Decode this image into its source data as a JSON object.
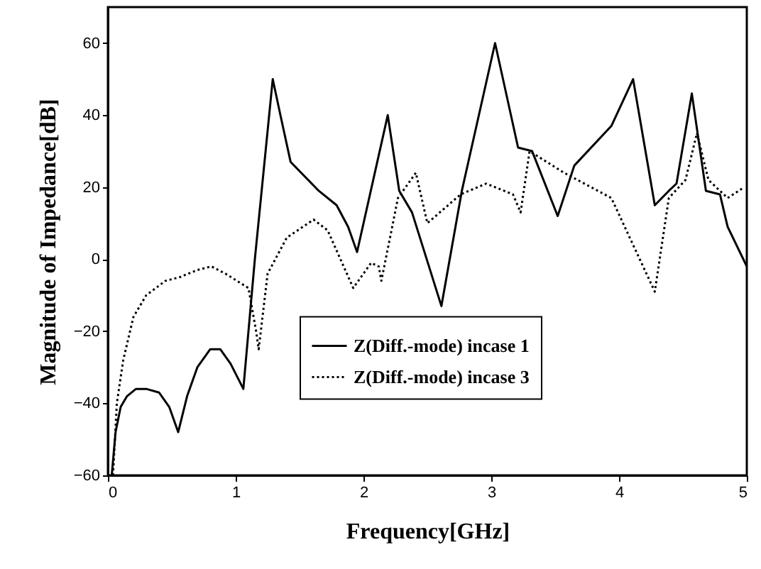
{
  "chart_data": {
    "type": "line",
    "xlabel": "Frequency[GHz]",
    "ylabel": "Magnitude of Impedance[dB]",
    "xlim": [
      0,
      5
    ],
    "xticks": [
      0,
      1,
      2,
      3,
      4,
      5
    ],
    "ylim": [
      -60,
      70
    ],
    "yticks": [
      -60,
      -40,
      -20,
      0,
      20,
      40,
      60
    ],
    "grid": false,
    "legend": "bottom",
    "marker": "none",
    "series": [
      {
        "name": "Z(Diff.-mode) incase 1",
        "color": "#000000",
        "line_style": "solid",
        "x": [
          0.03,
          0.06,
          0.1,
          0.15,
          0.22,
          0.3,
          0.4,
          0.48,
          0.55,
          0.62,
          0.7,
          0.8,
          0.88,
          0.96,
          1.06,
          1.15,
          1.29,
          1.35,
          1.43,
          1.65,
          1.79,
          1.88,
          1.95,
          2.19,
          2.28,
          2.38,
          2.61,
          2.77,
          3.03,
          3.21,
          3.32,
          3.52,
          3.65,
          3.94,
          4.11,
          4.28,
          4.39,
          4.45,
          4.57,
          4.68,
          4.79,
          4.85,
          5.0
        ],
        "values": [
          -60,
          -48,
          -41,
          -38,
          -36,
          -36,
          -37,
          -41,
          -48,
          -38,
          -30,
          -25,
          -25,
          -29,
          -36,
          0,
          50,
          40,
          27,
          19,
          15,
          9,
          2,
          40,
          19,
          13,
          -13,
          19,
          60,
          31,
          30,
          12,
          26,
          37,
          50,
          15,
          19,
          21,
          46,
          19,
          18,
          9,
          -2
        ]
      },
      {
        "name": "Z(Diff.-mode) incase 3",
        "color": "#000000",
        "line_style": "dotted",
        "x": [
          0.04,
          0.07,
          0.12,
          0.2,
          0.3,
          0.45,
          0.56,
          0.7,
          0.81,
          0.92,
          1.1,
          1.16,
          1.18,
          1.25,
          1.4,
          1.61,
          1.72,
          1.92,
          2.06,
          2.12,
          2.14,
          2.27,
          2.41,
          2.5,
          2.76,
          2.96,
          3.17,
          3.23,
          3.3,
          3.57,
          3.94,
          4.28,
          4.39,
          4.52,
          4.61,
          4.7,
          4.85,
          4.98
        ],
        "values": [
          -60,
          -40,
          -28,
          -16,
          -10,
          -6,
          -5,
          -3,
          -2,
          -4,
          -8,
          -20,
          -25,
          -4,
          6,
          11,
          8,
          -8,
          -1,
          -2,
          -6,
          17,
          24,
          10,
          18,
          21,
          18,
          13,
          30,
          24,
          17,
          -9,
          17,
          22,
          35,
          22,
          17,
          20
        ]
      }
    ]
  }
}
